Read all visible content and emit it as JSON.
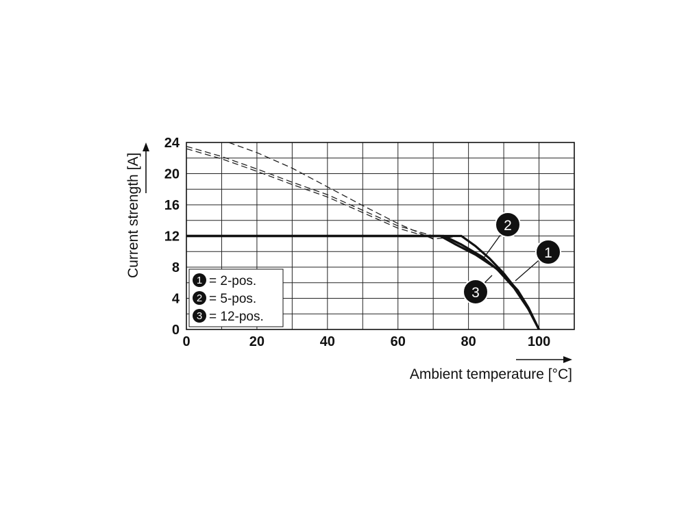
{
  "chart_data": {
    "type": "line",
    "xlabel": "Ambient temperature [°C]",
    "ylabel": "Current strength [A]",
    "xlim": [
      0,
      110
    ],
    "ylim": [
      0,
      24
    ],
    "x_ticks": [
      "0",
      "20",
      "40",
      "60",
      "80",
      "100"
    ],
    "y_ticks": [
      "0",
      "4",
      "8",
      "12",
      "16",
      "20",
      "24"
    ],
    "grid": true,
    "legend_position": "bottom-left",
    "series": [
      {
        "name": "2-pos.",
        "marker": "1",
        "rated": [
          [
            0,
            12
          ],
          [
            78,
            12
          ],
          [
            82,
            10.7
          ],
          [
            86,
            9.1
          ],
          [
            90,
            7.2
          ],
          [
            94,
            4.9
          ],
          [
            97,
            2.6
          ],
          [
            100,
            0
          ]
        ],
        "theoretical": [
          [
            12,
            24
          ],
          [
            20,
            22.7
          ],
          [
            30,
            20.7
          ],
          [
            40,
            18.3
          ],
          [
            50,
            15.9
          ],
          [
            60,
            13.6
          ],
          [
            70,
            11.6
          ],
          [
            78,
            12
          ]
        ]
      },
      {
        "name": "5-pos.",
        "marker": "2",
        "rated": [
          [
            0,
            12
          ],
          [
            73,
            12
          ],
          [
            78,
            10.9
          ],
          [
            84,
            9.3
          ],
          [
            90,
            7.0
          ],
          [
            94,
            5.0
          ],
          [
            97,
            2.8
          ],
          [
            100,
            0
          ]
        ],
        "theoretical": [
          [
            0,
            23.5
          ],
          [
            10,
            22.2
          ],
          [
            20,
            20.6
          ],
          [
            30,
            18.9
          ],
          [
            40,
            17.3
          ],
          [
            50,
            15.3
          ],
          [
            60,
            13.3
          ],
          [
            70,
            12.0
          ]
        ]
      },
      {
        "name": "12-pos.",
        "marker": "3",
        "rated": [
          [
            0,
            12
          ],
          [
            72,
            12
          ],
          [
            76,
            11.0
          ],
          [
            82,
            9.6
          ],
          [
            88,
            7.8
          ],
          [
            93,
            5.3
          ],
          [
            97,
            2.6
          ],
          [
            100,
            0
          ]
        ],
        "theoretical": [
          [
            0,
            23.2
          ],
          [
            10,
            21.9
          ],
          [
            20,
            20.3
          ],
          [
            30,
            18.6
          ],
          [
            40,
            17.0
          ],
          [
            50,
            15.0
          ],
          [
            60,
            13.0
          ],
          [
            70,
            11.7
          ]
        ]
      }
    ],
    "callouts": [
      {
        "label": "1",
        "series": 0
      },
      {
        "label": "2",
        "series": 1
      },
      {
        "label": "3",
        "series": 2
      }
    ],
    "legend": [
      {
        "marker": "1",
        "text": "= 2-pos."
      },
      {
        "marker": "2",
        "text": "= 5-pos."
      },
      {
        "marker": "3",
        "text": "= 12-pos."
      }
    ]
  }
}
